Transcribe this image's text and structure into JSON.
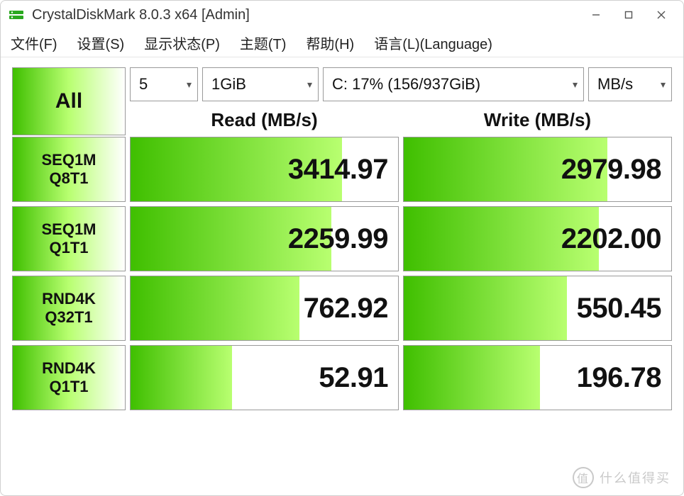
{
  "colors": {
    "window_border": "#d0d0d0",
    "cell_border": "#9a9a9a",
    "text": "#111111",
    "menu_text": "#222222",
    "gradient_start": "#3fbf00",
    "gradient_end": "#b8ff70",
    "bar_bg": "#ffffff",
    "watermark": "#c9c9c9"
  },
  "fonts": {
    "title_size_pt": 15,
    "menu_size_pt": 15,
    "header_size_pt": 20,
    "result_size_pt": 30,
    "test_label_size_pt": 16
  },
  "titlebar": {
    "title": "CrystalDiskMark 8.0.3 x64 [Admin]"
  },
  "menu": {
    "items": [
      "文件(F)",
      "设置(S)",
      "显示状态(P)",
      "主题(T)",
      "帮助(H)",
      "语言(L)(Language)"
    ]
  },
  "controls": {
    "all_label": "All",
    "count_selected": "5",
    "size_selected": "1GiB",
    "drive_selected": "C: 17% (156/937GiB)",
    "unit_selected": "MB/s"
  },
  "headers": {
    "read": "Read (MB/s)",
    "write": "Write (MB/s)"
  },
  "tests": [
    {
      "line1": "SEQ1M",
      "line2": "Q8T1",
      "read": "3414.97",
      "write": "2979.98",
      "read_fill_pct": 79,
      "write_fill_pct": 76
    },
    {
      "line1": "SEQ1M",
      "line2": "Q1T1",
      "read": "2259.99",
      "write": "2202.00",
      "read_fill_pct": 75,
      "write_fill_pct": 73
    },
    {
      "line1": "RND4K",
      "line2": "Q32T1",
      "read": "762.92",
      "write": "550.45",
      "read_fill_pct": 63,
      "write_fill_pct": 61
    },
    {
      "line1": "RND4K",
      "line2": "Q1T1",
      "read": "52.91",
      "write": "196.78",
      "read_fill_pct": 38,
      "write_fill_pct": 51
    }
  ],
  "watermark": {
    "text": "什么值得买"
  }
}
